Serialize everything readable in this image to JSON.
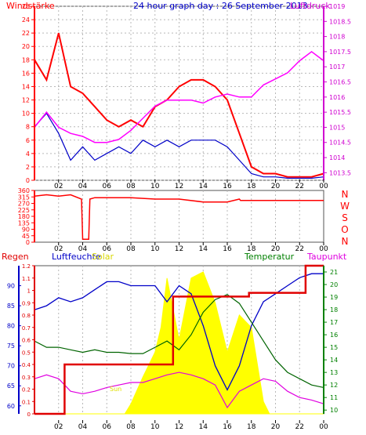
{
  "page": {
    "background": "#ffffff"
  },
  "chart_data": [
    {
      "type": "line",
      "title": "24 hour graph day : 26 September 2013",
      "left_axis_title": "Windstärke",
      "right_axis_title": "Luftdruck",
      "x_ticks": [
        "02",
        "04",
        "06",
        "08",
        "10",
        "12",
        "14",
        "16",
        "18",
        "20",
        "22",
        "00"
      ],
      "y_left_ticks": [
        "0",
        "2",
        "4",
        "6",
        "8",
        "10",
        "12",
        "14",
        "16",
        "18",
        "20",
        "22",
        "24",
        "26"
      ],
      "y_right_ticks": [
        "1013.5",
        "1014",
        "1014.5",
        "1015",
        "1015.5",
        "1016",
        "1016.5",
        "1017",
        "1017.5",
        "1018",
        "1018.5",
        "1019"
      ],
      "ylim_left": [
        0,
        26
      ],
      "ylim_right": [
        1013.25,
        1019
      ],
      "grid": true,
      "colors": {
        "wind_gust": "#ff0000",
        "wind_avg": "#0000c8",
        "pressure": "#ff00ff",
        "left_axis": "#ff0000",
        "right_axis": "#d000d0",
        "title": "#0000c8",
        "grid": "#b8b8b8"
      },
      "series": [
        {
          "name": "",
          "role": "gust",
          "x": [
            0,
            1,
            2,
            3,
            4,
            5,
            6,
            7,
            8,
            9,
            10,
            11,
            12,
            13,
            14,
            15,
            16,
            17,
            18,
            19,
            20,
            21,
            22,
            23,
            24
          ],
          "y": [
            18,
            15,
            22,
            14,
            13,
            11,
            9,
            8,
            9,
            8,
            11,
            12,
            14,
            15,
            15,
            14,
            12,
            7,
            2,
            1,
            1,
            0.5,
            0.5,
            0.5,
            1
          ]
        },
        {
          "name": "",
          "role": "average",
          "x": [
            0,
            1,
            2,
            3,
            4,
            5,
            6,
            7,
            8,
            9,
            10,
            11,
            12,
            13,
            14,
            15,
            16,
            17,
            18,
            19,
            20,
            21,
            22,
            23,
            24
          ],
          "y": [
            8,
            10,
            7,
            3,
            5,
            3,
            4,
            5,
            4,
            6,
            5,
            6,
            5,
            6,
            6,
            6,
            5,
            3,
            1,
            0.5,
            0.5,
            0.3,
            0.3,
            0.3,
            0.5
          ]
        },
        {
          "name": "",
          "role": "pressure",
          "x": [
            0,
            1,
            2,
            3,
            4,
            5,
            6,
            7,
            8,
            9,
            10,
            11,
            12,
            13,
            14,
            15,
            16,
            17,
            18,
            19,
            20,
            21,
            22,
            23,
            24
          ],
          "y": [
            1015.0,
            1015.5,
            1015.0,
            1014.8,
            1014.7,
            1014.5,
            1014.5,
            1014.6,
            1014.9,
            1015.3,
            1015.7,
            1015.9,
            1015.9,
            1015.9,
            1015.8,
            1016.0,
            1016.1,
            1016.0,
            1016.0,
            1016.4,
            1016.6,
            1016.8,
            1017.2,
            1017.5,
            1017.2
          ]
        }
      ]
    },
    {
      "type": "line",
      "title": "",
      "y_ticks": [
        "0",
        "45",
        "90",
        "135",
        "180",
        "225",
        "270",
        "315",
        "360"
      ],
      "ylim": [
        0,
        360
      ],
      "direction_labels": [
        "N",
        "W",
        "S",
        "O",
        "N"
      ],
      "x_ticks": [
        "02",
        "04",
        "06",
        "08",
        "10",
        "12",
        "14",
        "16",
        "18",
        "20",
        "22",
        "00"
      ],
      "colors": {
        "line": "#ff0000",
        "directions": "#ff0000"
      },
      "series": [
        {
          "name": "",
          "role": "direction",
          "x": [
            0,
            1,
            2,
            3,
            3.9,
            4.0,
            4.5,
            4.6,
            5,
            6,
            8,
            10,
            12,
            14,
            16,
            17,
            17.1,
            18,
            24
          ],
          "y": [
            320,
            330,
            320,
            330,
            300,
            20,
            20,
            300,
            310,
            310,
            310,
            300,
            300,
            280,
            280,
            300,
            290,
            290,
            290
          ]
        }
      ]
    },
    {
      "type": "line",
      "title": "",
      "labels": {
        "rain": "Regen",
        "humidity": "Luftfeuchte",
        "solar": "Solar",
        "temperature": "Temperatur",
        "dewpoint": "Taupunkt",
        "sun": "Sun"
      },
      "x_ticks": [
        "02",
        "04",
        "06",
        "08",
        "10",
        "12",
        "14",
        "16",
        "18",
        "20",
        "22",
        "00"
      ],
      "rain_ticks": [
        "0",
        "0.1",
        "0.2",
        "0.3",
        "0.4",
        "0.5",
        "0.6",
        "0.7",
        "0.8",
        "0.9",
        "1",
        "1.1",
        "1.2"
      ],
      "humidity_ticks": [
        "60",
        "65",
        "70",
        "75",
        "80",
        "85",
        "90"
      ],
      "temperature_ticks": [
        "10",
        "11",
        "12",
        "13",
        "14",
        "15",
        "16",
        "17",
        "18",
        "19",
        "20",
        "21"
      ],
      "ylim_rain": [
        0,
        1.2
      ],
      "ylim_humidity": [
        58,
        95
      ],
      "ylim_temperature": [
        9.7,
        21.5
      ],
      "colors": {
        "rain": "#e00000",
        "humidity": "#0000c8",
        "temperature": "#006400",
        "dewpoint": "#e000e0",
        "solar": "#ffff00",
        "sun_label": "#e0e000",
        "rain_axis": "#e00000",
        "humidity_axis": "#0000c8",
        "temperature_axis": "#008000",
        "title_rain": "#e00000",
        "title_humidity": "#0000c8",
        "title_solar": "#d8d800",
        "title_temperature": "#008000",
        "title_dewpoint": "#e000e0"
      },
      "series": [
        {
          "name": "",
          "role": "rain",
          "x": [
            0,
            2.5,
            2.5,
            11.5,
            11.5,
            12.4,
            12.4,
            17.8,
            17.8,
            22.5,
            22.5,
            24
          ],
          "y": [
            0,
            0,
            0.4,
            0.4,
            0.95,
            0.95,
            0.95,
            0.95,
            0.98,
            0.98,
            1.2,
            1.2
          ]
        },
        {
          "name": "",
          "role": "humidity",
          "x": [
            0,
            1,
            2,
            3,
            4,
            5,
            6,
            7,
            8,
            9,
            10,
            11,
            12,
            13,
            14,
            15,
            16,
            17,
            18,
            19,
            20,
            21,
            22,
            23,
            24
          ],
          "y": [
            84,
            85,
            87,
            86,
            87,
            89,
            91,
            91,
            90,
            90,
            90,
            86,
            90,
            88,
            80,
            70,
            64,
            70,
            80,
            86,
            88,
            90,
            92,
            93,
            93
          ]
        },
        {
          "name": "",
          "role": "temperature",
          "x": [
            0,
            1,
            2,
            3,
            4,
            5,
            6,
            7,
            8,
            9,
            10,
            11,
            12,
            13,
            14,
            15,
            16,
            17,
            18,
            19,
            20,
            21,
            22,
            23,
            24
          ],
          "y": [
            15.5,
            15.0,
            15.0,
            14.8,
            14.6,
            14.8,
            14.6,
            14.6,
            14.5,
            14.5,
            15.0,
            15.5,
            14.8,
            16.0,
            17.8,
            18.8,
            19.2,
            18.5,
            17.0,
            15.5,
            14.0,
            13.0,
            12.5,
            12.0,
            11.8
          ]
        },
        {
          "name": "",
          "role": "dewpoint",
          "x": [
            0,
            1,
            2,
            3,
            4,
            5,
            6,
            7,
            8,
            9,
            10,
            11,
            12,
            13,
            14,
            15,
            16,
            17,
            18,
            19,
            20,
            21,
            22,
            23,
            24
          ],
          "y": [
            12.5,
            12.8,
            12.5,
            11.5,
            11.3,
            11.5,
            11.8,
            12.0,
            12.2,
            12.2,
            12.5,
            12.8,
            13.0,
            12.8,
            12.5,
            12.0,
            10.2,
            11.5,
            12.0,
            12.5,
            12.3,
            11.5,
            11.0,
            10.8,
            10.5
          ]
        },
        {
          "name": "",
          "role": "solar",
          "x": [
            0,
            7.5,
            8,
            9,
            10,
            10.5,
            11,
            12,
            13,
            14,
            15,
            16,
            17,
            18,
            19,
            19.5,
            24
          ],
          "y": [
            0,
            0,
            0.08,
            0.3,
            0.5,
            0.7,
            1.1,
            0.6,
            1.1,
            1.15,
            0.9,
            0.5,
            0.8,
            0.7,
            0.1,
            0,
            0
          ]
        }
      ]
    }
  ]
}
